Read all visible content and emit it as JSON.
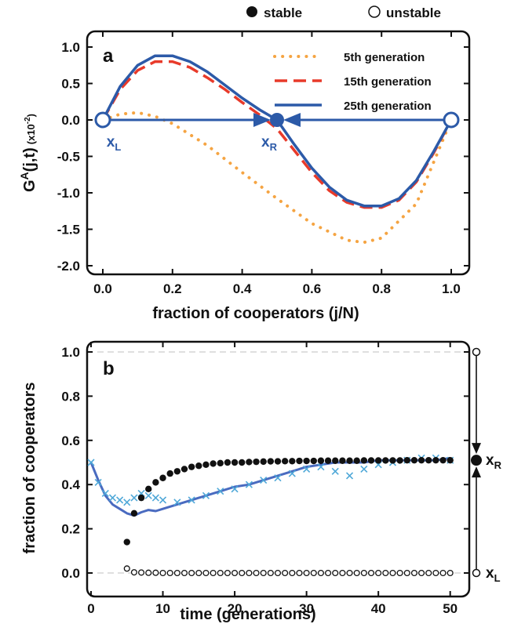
{
  "top_legend": {
    "stable_label": "stable",
    "unstable_label": "unstable"
  },
  "chart_data": [
    {
      "type": "line",
      "panel_label": "a",
      "ylabel_main": "G",
      "ylabel_sup": "A",
      "ylabel_args": "(j,t)",
      "ylabel_scale_pre": "(x10",
      "ylabel_scale_sup": "-2",
      "ylabel_scale_post": ")",
      "xlabel": "fraction of cooperators (j/N)",
      "xlim": [
        0,
        1
      ],
      "ylim": [
        -2.0,
        1.0
      ],
      "x_ticks": [
        "0.0",
        "0.2",
        "0.4",
        "0.6",
        "0.8",
        "1.0"
      ],
      "y_ticks": [
        "1.0",
        "0.5",
        "0.0",
        "-0.5",
        "-1.0",
        "-1.5",
        "-2.0"
      ],
      "legend_position": "top-right",
      "series": [
        {
          "name": "5th generation",
          "style": "dotted",
          "color": "#f5a442",
          "x": [
            0.0,
            0.05,
            0.1,
            0.15,
            0.2,
            0.3,
            0.4,
            0.5,
            0.6,
            0.7,
            0.75,
            0.8,
            0.9,
            1.0
          ],
          "y": [
            0.0,
            0.08,
            0.1,
            0.05,
            -0.05,
            -0.35,
            -0.72,
            -1.08,
            -1.42,
            -1.65,
            -1.68,
            -1.62,
            -1.15,
            0.0
          ]
        },
        {
          "name": "15th generation",
          "style": "dashed",
          "color": "#e83a2a",
          "x": [
            0.0,
            0.05,
            0.1,
            0.15,
            0.2,
            0.25,
            0.3,
            0.35,
            0.4,
            0.45,
            0.5,
            0.55,
            0.6,
            0.65,
            0.7,
            0.75,
            0.8,
            0.85,
            0.9,
            0.95,
            1.0
          ],
          "y": [
            0.0,
            0.42,
            0.68,
            0.8,
            0.8,
            0.72,
            0.58,
            0.42,
            0.24,
            0.07,
            -0.12,
            -0.42,
            -0.72,
            -0.97,
            -1.13,
            -1.2,
            -1.2,
            -1.1,
            -0.85,
            -0.45,
            0.0
          ]
        },
        {
          "name": "25th generation",
          "style": "solid",
          "color": "#2c5aa8",
          "x": [
            0.0,
            0.05,
            0.1,
            0.15,
            0.2,
            0.25,
            0.3,
            0.35,
            0.4,
            0.45,
            0.5,
            0.55,
            0.6,
            0.65,
            0.7,
            0.75,
            0.8,
            0.85,
            0.9,
            0.95,
            1.0
          ],
          "y": [
            0.0,
            0.46,
            0.75,
            0.88,
            0.88,
            0.8,
            0.66,
            0.48,
            0.3,
            0.14,
            0.0,
            -0.34,
            -0.66,
            -0.92,
            -1.1,
            -1.18,
            -1.18,
            -1.08,
            -0.83,
            -0.43,
            0.0
          ]
        }
      ],
      "fixed_points": [
        {
          "x": 0.0,
          "y": 0.0,
          "kind": "unstable",
          "label": "x",
          "label_sub": "L"
        },
        {
          "x": 0.5,
          "y": 0.0,
          "kind": "stable",
          "label": "x",
          "label_sub": "R"
        },
        {
          "x": 1.0,
          "y": 0.0,
          "kind": "unstable",
          "label": "",
          "label_sub": ""
        }
      ]
    },
    {
      "type": "scatter",
      "panel_label": "b",
      "xlabel": "time (generations)",
      "ylabel": "fraction of cooperators",
      "xlim": [
        0,
        52
      ],
      "ylim": [
        0,
        1.0
      ],
      "x_ticks": [
        "0",
        "10",
        "20",
        "30",
        "40",
        "50"
      ],
      "y_ticks": [
        "1.0",
        "0.8",
        "0.6",
        "0.4",
        "0.2",
        "0.0"
      ],
      "gridlines_at": [
        1.0,
        0.0
      ],
      "series": [
        {
          "name": "stable",
          "marker": "filled-circle",
          "x": [
            5,
            6,
            7,
            8,
            9,
            10,
            11,
            12,
            13,
            14,
            15,
            16,
            17,
            18,
            19,
            20,
            21,
            22,
            23,
            24,
            25,
            26,
            27,
            28,
            29,
            30,
            31,
            32,
            33,
            34,
            35,
            36,
            37,
            38,
            39,
            40,
            41,
            42,
            43,
            44,
            45,
            46,
            47,
            48,
            49,
            50
          ],
          "y": [
            0.14,
            0.27,
            0.34,
            0.38,
            0.41,
            0.43,
            0.45,
            0.46,
            0.47,
            0.48,
            0.485,
            0.49,
            0.495,
            0.497,
            0.5,
            0.5,
            0.5,
            0.502,
            0.503,
            0.504,
            0.505,
            0.505,
            0.506,
            0.506,
            0.507,
            0.507,
            0.507,
            0.508,
            0.508,
            0.508,
            0.508,
            0.508,
            0.508,
            0.509,
            0.509,
            0.509,
            0.509,
            0.509,
            0.509,
            0.51,
            0.51,
            0.51,
            0.51,
            0.51,
            0.51,
            0.51
          ]
        },
        {
          "name": "unstable",
          "marker": "open-circle",
          "x": [
            5,
            6,
            7,
            8,
            9,
            10,
            11,
            12,
            13,
            14,
            15,
            16,
            17,
            18,
            19,
            20,
            21,
            22,
            23,
            24,
            25,
            26,
            27,
            28,
            29,
            30,
            31,
            32,
            33,
            34,
            35,
            36,
            37,
            38,
            39,
            40,
            41,
            42,
            43,
            44,
            45,
            46,
            47,
            48,
            49,
            50
          ],
          "y": [
            0.02,
            0.003,
            0.002,
            0.001,
            0.001,
            0.0,
            0.0,
            0.0,
            0.0,
            0.0,
            0.0,
            0.0,
            0.0,
            0.0,
            0.0,
            0.0,
            0.0,
            0.0,
            0.0,
            0.0,
            0.0,
            0.0,
            0.0,
            0.0,
            0.0,
            0.0,
            0.0,
            0.0,
            0.0,
            0.0,
            0.0,
            0.0,
            0.0,
            0.0,
            0.0,
            0.0,
            0.0,
            0.0,
            0.0,
            0.0,
            0.0,
            0.0,
            0.0,
            0.0,
            0.0,
            0.0
          ]
        },
        {
          "name": "simulation (blue line)",
          "marker": "line",
          "color": "#4a6bc0",
          "x": [
            0,
            1,
            2,
            3,
            4,
            5,
            6,
            7,
            8,
            9,
            10,
            12,
            14,
            16,
            18,
            20,
            22,
            24,
            26,
            28,
            30,
            32,
            34,
            36,
            38,
            40,
            42,
            44,
            46,
            48,
            50
          ],
          "y": [
            0.5,
            0.42,
            0.35,
            0.31,
            0.29,
            0.27,
            0.26,
            0.275,
            0.285,
            0.28,
            0.29,
            0.31,
            0.33,
            0.35,
            0.37,
            0.39,
            0.4,
            0.42,
            0.44,
            0.46,
            0.48,
            0.49,
            0.5,
            0.5,
            0.5,
            0.51,
            0.51,
            0.51,
            0.51,
            0.51,
            0.52
          ]
        },
        {
          "name": "simulation (cyan crosses)",
          "marker": "x",
          "color": "#4fa8d8",
          "x": [
            0,
            1,
            2,
            3,
            4,
            5,
            6,
            7,
            8,
            9,
            10,
            12,
            14,
            16,
            18,
            20,
            22,
            24,
            26,
            28,
            30,
            32,
            34,
            36,
            38,
            40,
            42,
            44,
            46,
            48,
            50
          ],
          "y": [
            0.5,
            0.41,
            0.36,
            0.34,
            0.33,
            0.32,
            0.34,
            0.36,
            0.35,
            0.34,
            0.33,
            0.32,
            0.33,
            0.35,
            0.37,
            0.38,
            0.4,
            0.42,
            0.43,
            0.45,
            0.47,
            0.48,
            0.46,
            0.44,
            0.47,
            0.49,
            0.5,
            0.51,
            0.52,
            0.52,
            0.51
          ]
        }
      ],
      "fixed_points": [
        {
          "y": 1.0,
          "kind": "unstable",
          "label": "",
          "label_sub": ""
        },
        {
          "y": 0.51,
          "kind": "stable",
          "label": "x",
          "label_sub": "R"
        },
        {
          "y": 0.0,
          "kind": "unstable",
          "label": "x",
          "label_sub": "L"
        }
      ]
    }
  ]
}
